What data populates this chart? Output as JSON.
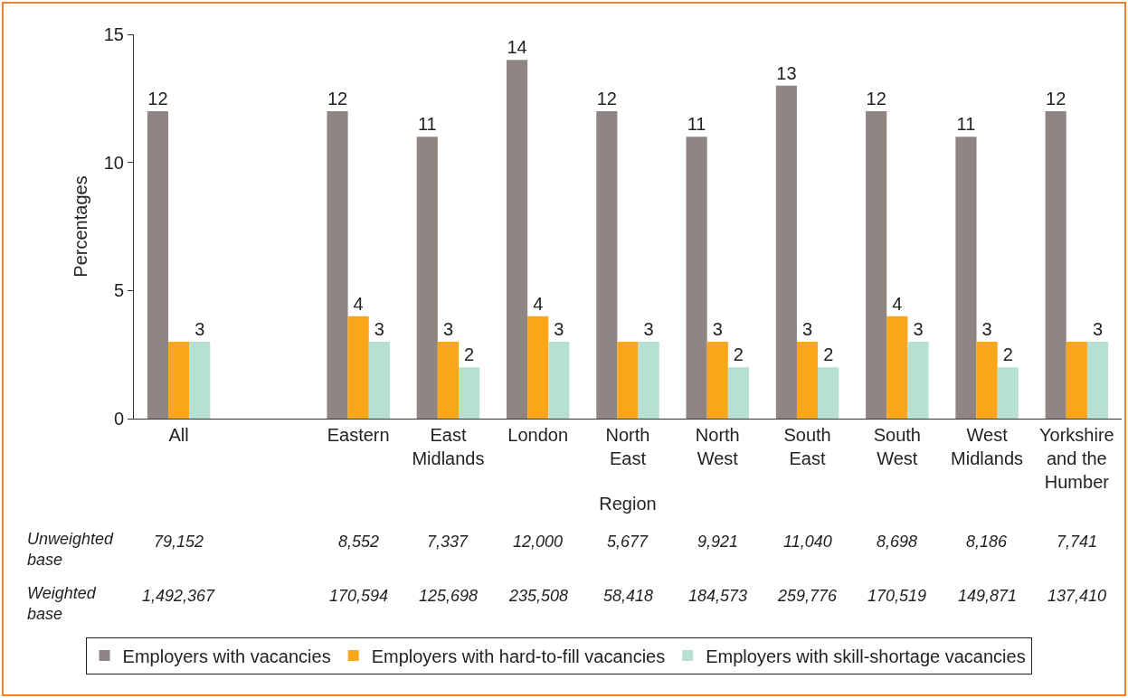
{
  "chart_data": {
    "type": "bar",
    "xlabel": "Region",
    "ylabel": "Percentages",
    "categories": [
      "All",
      null,
      "Eastern",
      "East Midlands",
      "London",
      "North East",
      "North West",
      "South East",
      "South West",
      "West Midlands",
      "Yorkshire and the Humber"
    ],
    "series": [
      {
        "name": "Employers with vacancies",
        "color": "#8f8683",
        "values": [
          12,
          null,
          12,
          11,
          14,
          12,
          11,
          13,
          12,
          11,
          12
        ],
        "value_labels": [
          "12",
          null,
          "12",
          "11",
          "14",
          "12",
          "11",
          "13",
          "12",
          "11",
          "12"
        ]
      },
      {
        "name": "Employers with hard-to-fill vacancies",
        "color": "#f9a61a",
        "values": [
          3,
          null,
          4,
          3,
          4,
          3,
          3,
          3,
          4,
          3,
          3
        ],
        "value_labels": [
          null,
          null,
          "4",
          "3",
          "4",
          null,
          "3",
          "3",
          "4",
          "3",
          null
        ]
      },
      {
        "name": "Employers with skill-shortage vacancies",
        "color": "#b5e0d3",
        "values": [
          3,
          null,
          3,
          2,
          3,
          3,
          2,
          2,
          3,
          2,
          3
        ],
        "value_labels": [
          "3",
          null,
          "3",
          "2",
          "3",
          "3",
          "2",
          "2",
          "3",
          "2",
          "3"
        ]
      }
    ],
    "ylim": [
      0,
      15
    ],
    "yticks": [
      0,
      5,
      10,
      15
    ],
    "grid": false,
    "legend": "bottom",
    "annotations": [
      "Unweighted base",
      "79,152",
      "8,552",
      "7,337",
      "12,000",
      "5,677",
      "9,921",
      "11,040",
      "8,698",
      "8,186",
      "7,741",
      "Weighted base",
      "1,492,367",
      "170,594",
      "125,698",
      "235,508",
      "58,418",
      "184,573",
      "259,776",
      "170,519",
      "149,871",
      "137,410"
    ]
  }
}
